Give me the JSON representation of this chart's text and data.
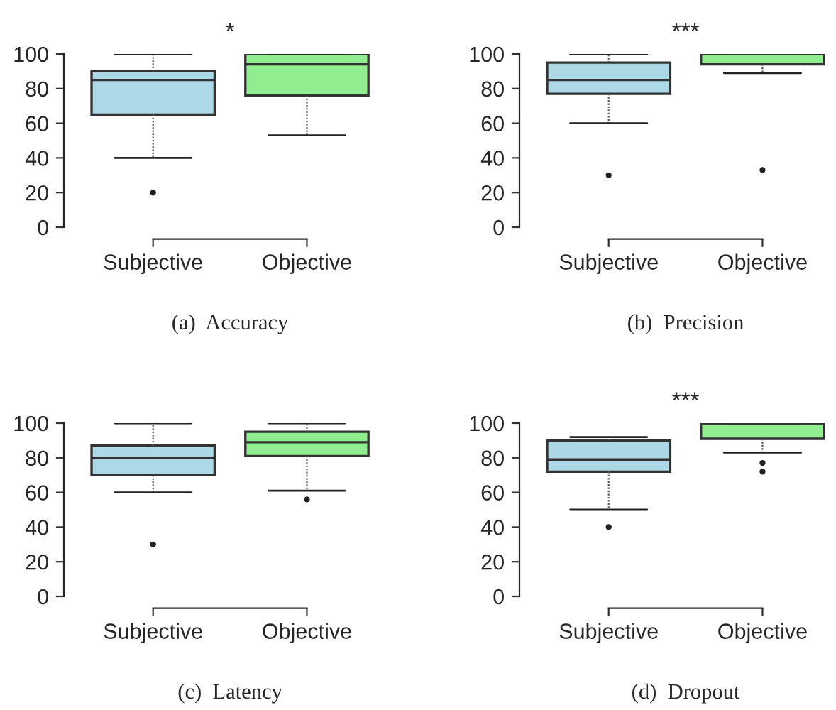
{
  "chart_data": [
    {
      "type": "box",
      "title": "(a)  Accuracy",
      "categories": [
        "Subjective",
        "Objective"
      ],
      "colors": [
        "#add8e6",
        "#90ee90"
      ],
      "ylim": [
        0,
        100
      ],
      "yticks": [
        0,
        20,
        40,
        60,
        80,
        100
      ],
      "grid": false,
      "annotations": [
        "*"
      ],
      "boxes": [
        {
          "low": 40,
          "q1": 65,
          "median": 85,
          "q3": 90,
          "high": 100,
          "outliers": [
            20
          ]
        },
        {
          "low": 53,
          "q1": 76,
          "median": 94,
          "q3": 100,
          "high": 100
        }
      ]
    },
    {
      "type": "box",
      "title": "(b)  Precision",
      "categories": [
        "Subjective",
        "Objective"
      ],
      "colors": [
        "#add8e6",
        "#90ee90"
      ],
      "ylim": [
        0,
        100
      ],
      "yticks": [
        0,
        20,
        40,
        60,
        80,
        100
      ],
      "grid": false,
      "annotations": [
        "***"
      ],
      "boxes": [
        {
          "low": 60,
          "q1": 77,
          "median": 85,
          "q3": 95,
          "high": 100,
          "outliers": [
            30
          ]
        },
        {
          "low": 89,
          "q1": 94,
          "median": 100,
          "q3": 100,
          "high": 100,
          "outliers": [
            33
          ]
        }
      ]
    },
    {
      "type": "box",
      "title": "(c)  Latency",
      "categories": [
        "Subjective",
        "Objective"
      ],
      "colors": [
        "#add8e6",
        "#90ee90"
      ],
      "ylim": [
        0,
        100
      ],
      "yticks": [
        0,
        20,
        40,
        60,
        80,
        100
      ],
      "grid": false,
      "boxes": [
        {
          "low": 60,
          "q1": 70,
          "median": 80,
          "q3": 87,
          "high": 100,
          "outliers": [
            30
          ]
        },
        {
          "low": 61,
          "q1": 81,
          "median": 89,
          "q3": 95,
          "high": 100,
          "outliers": [
            56
          ]
        }
      ]
    },
    {
      "type": "box",
      "title": "(d)  Dropout",
      "categories": [
        "Subjective",
        "Objective"
      ],
      "colors": [
        "#add8e6",
        "#90ee90"
      ],
      "ylim": [
        0,
        100
      ],
      "yticks": [
        0,
        20,
        40,
        60,
        80,
        100
      ],
      "grid": false,
      "annotations": [
        "***"
      ],
      "boxes": [
        {
          "low": 50,
          "q1": 72,
          "median": 79,
          "q3": 90,
          "high": 92,
          "outliers": [
            40
          ]
        },
        {
          "low": 83,
          "q1": 91,
          "median": 100,
          "q3": 100,
          "high": 100,
          "outliers": [
            72,
            77
          ]
        }
      ]
    }
  ]
}
